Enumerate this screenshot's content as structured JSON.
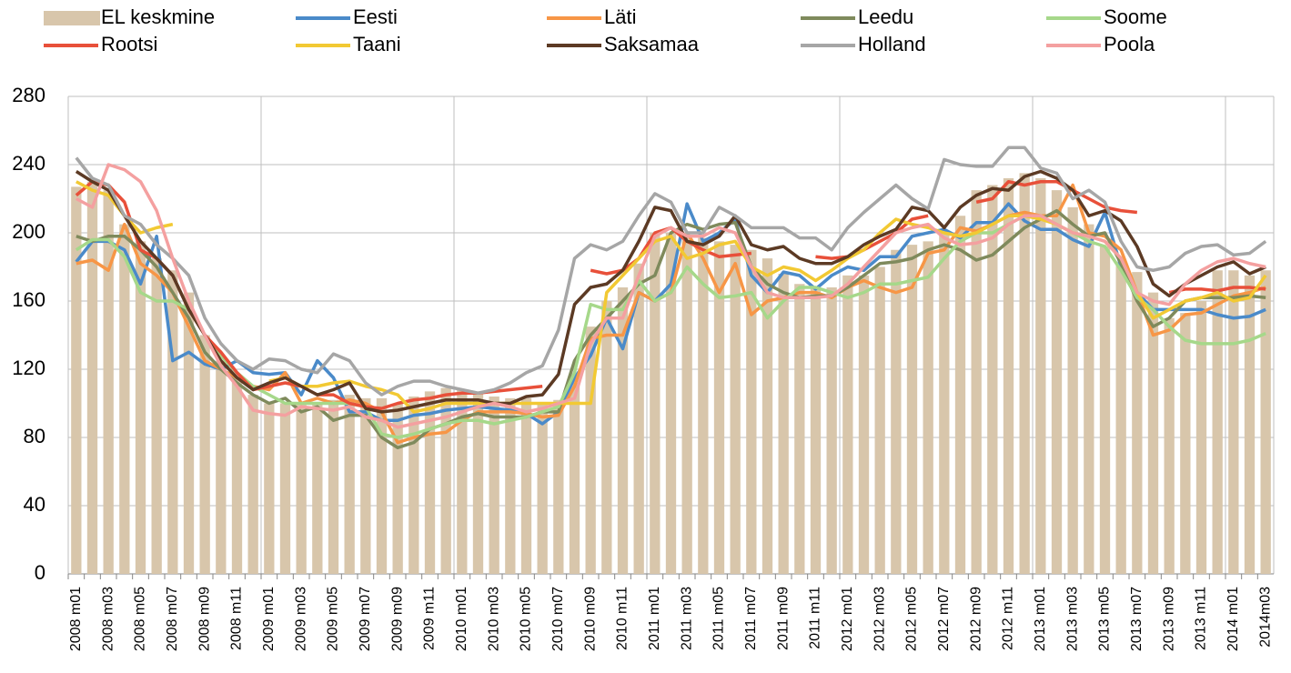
{
  "chart_data": {
    "type": "bar-line",
    "categories": [
      "2008 m01",
      null,
      "2008 m03",
      null,
      "2008 m05",
      null,
      "2008 m07",
      null,
      "2008 m09",
      null,
      "2008 m11",
      null,
      "2009 m01",
      null,
      "2009 m03",
      null,
      "2009 m05",
      null,
      "2009 m07",
      null,
      "2009 m09",
      null,
      "2009 m11",
      null,
      "2010 m01",
      null,
      "2010 m03",
      null,
      "2010 m05",
      null,
      "2010 m07",
      null,
      "2010 m09",
      null,
      "2010 m11",
      null,
      "2011 m01",
      null,
      "2011 m03",
      null,
      "2011 m05",
      null,
      "2011 m07",
      null,
      "2011 m09",
      null,
      "2011 m11",
      null,
      "2012 m01",
      null,
      "2012 m03",
      null,
      "2012 m05",
      null,
      "2012 m07",
      null,
      "2012 m09",
      null,
      "2012 m11",
      null,
      "2013 m01",
      null,
      "2013 m03",
      null,
      "2013 m05",
      null,
      "2013 m07",
      null,
      "2013 m09",
      null,
      "2013 m11",
      null,
      "2014 m01",
      null,
      "2014m03"
    ],
    "ylim": [
      0,
      280
    ],
    "yticks": [
      0,
      40,
      80,
      120,
      160,
      200,
      240,
      280
    ],
    "grid": true,
    "series": [
      {
        "name": "EL keskmine",
        "type": "bar",
        "color": "#d8c6ab",
        "values": [
          227,
          230,
          225,
          205,
          195,
          185,
          178,
          165,
          140,
          125,
          115,
          105,
          100,
          100,
          100,
          100,
          102,
          105,
          103,
          103,
          100,
          104,
          107,
          109,
          108,
          106,
          104,
          103,
          103,
          100,
          102,
          112,
          145,
          160,
          168,
          182,
          200,
          200,
          197,
          197,
          195,
          193,
          190,
          185,
          176,
          170,
          168,
          168,
          175,
          175,
          180,
          190,
          193,
          195,
          200,
          210,
          225,
          228,
          232,
          235,
          232,
          225,
          215,
          205,
          192,
          183,
          177,
          165,
          150,
          153,
          160,
          178,
          178,
          175,
          178
        ]
      },
      {
        "name": "Eesti",
        "type": "line",
        "color": "#4a8ac9",
        "values": [
          183,
          195,
          195,
          190,
          170,
          198,
          125,
          130,
          123,
          120,
          125,
          118,
          117,
          118,
          105,
          125,
          115,
          95,
          95,
          90,
          90,
          93,
          94,
          96,
          97,
          98,
          97,
          96,
          94,
          88,
          95,
          115,
          128,
          150,
          132,
          165,
          160,
          170,
          217,
          195,
          200,
          208,
          175,
          165,
          177,
          175,
          167,
          175,
          180,
          178,
          186,
          186,
          198,
          200,
          202,
          197,
          206,
          206,
          217,
          207,
          202,
          202,
          196,
          192,
          212,
          180,
          165,
          155,
          155,
          155,
          155,
          152,
          150,
          151,
          155
        ]
      },
      {
        "name": "Läti",
        "type": "line",
        "color": "#f79646",
        "values": [
          182,
          184,
          178,
          205,
          182,
          175,
          165,
          145,
          125,
          120,
          115,
          110,
          108,
          118,
          100,
          103,
          100,
          102,
          100,
          95,
          77,
          80,
          82,
          83,
          90,
          95,
          95,
          95,
          94,
          92,
          93,
          110,
          138,
          140,
          140,
          165,
          160,
          165,
          200,
          185,
          165,
          182,
          152,
          160,
          162,
          165,
          165,
          162,
          168,
          172,
          168,
          165,
          168,
          188,
          190,
          203,
          201,
          205,
          210,
          212,
          210,
          210,
          228,
          200,
          198,
          190,
          165,
          140,
          143,
          152,
          153,
          158,
          163,
          165,
          168
        ]
      },
      {
        "name": "Leedu",
        "type": "line",
        "color": "#7f8a5c",
        "values": [
          198,
          195,
          198,
          198,
          190,
          180,
          165,
          150,
          130,
          120,
          112,
          105,
          100,
          103,
          95,
          98,
          90,
          93,
          93,
          80,
          74,
          77,
          85,
          88,
          92,
          94,
          92,
          92,
          92,
          95,
          95,
          125,
          140,
          150,
          160,
          170,
          175,
          200,
          205,
          202,
          205,
          206,
          180,
          170,
          165,
          162,
          163,
          163,
          168,
          175,
          182,
          183,
          185,
          190,
          193,
          190,
          184,
          187,
          195,
          203,
          208,
          213,
          205,
          198,
          200,
          182,
          160,
          145,
          150,
          160,
          162,
          162,
          162,
          163,
          162
        ]
      },
      {
        "name": "Soome",
        "type": "line",
        "color": "#a6d88a",
        "values": [
          190,
          196,
          196,
          186,
          165,
          160,
          160,
          155,
          140,
          128,
          118,
          110,
          105,
          100,
          100,
          100,
          100,
          100,
          98,
          82,
          80,
          82,
          85,
          88,
          90,
          90,
          88,
          90,
          92,
          95,
          98,
          118,
          158,
          155,
          155,
          172,
          160,
          165,
          180,
          170,
          162,
          163,
          165,
          150,
          160,
          168,
          168,
          165,
          162,
          165,
          170,
          170,
          172,
          174,
          185,
          195,
          200,
          200,
          205,
          210,
          210,
          205,
          200,
          195,
          192,
          178,
          162,
          155,
          145,
          137,
          135,
          135,
          135,
          137,
          141
        ]
      },
      {
        "name": "Rootsi",
        "type": "line",
        "color": "#e8503a",
        "values": [
          222,
          230,
          228,
          218,
          190,
          185,
          175,
          155,
          140,
          130,
          118,
          108,
          110,
          112,
          110,
          105,
          105,
          100,
          98,
          97,
          100,
          102,
          103,
          105,
          106,
          106,
          107,
          108,
          109,
          110,
          null,
          null,
          178,
          176,
          178,
          185,
          200,
          203,
          195,
          190,
          186,
          187,
          188,
          null,
          null,
          null,
          186,
          185,
          186,
          190,
          195,
          200,
          208,
          210,
          null,
          null,
          218,
          220,
          230,
          228,
          230,
          230,
          225,
          220,
          215,
          213,
          212,
          null,
          165,
          167,
          167,
          166,
          168,
          168,
          167
        ]
      },
      {
        "name": "Taani",
        "type": "line",
        "color": "#f2c933",
        "values": [
          230,
          225,
          222,
          210,
          200,
          203,
          205,
          null,
          null,
          null,
          null,
          null,
          113,
          115,
          110,
          110,
          112,
          113,
          110,
          108,
          105,
          95,
          97,
          100,
          100,
          100,
          100,
          100,
          100,
          100,
          100,
          100,
          100,
          165,
          175,
          185,
          195,
          198,
          185,
          188,
          193,
          195,
          180,
          175,
          180,
          178,
          172,
          178,
          185,
          190,
          200,
          208,
          205,
          203,
          200,
          198,
          200,
          205,
          210,
          210,
          208,
          205,
          200,
          198,
          195,
          185,
          165,
          150,
          155,
          160,
          162,
          165,
          160,
          162,
          175
        ]
      },
      {
        "name": "Saksamaa",
        "type": "line",
        "color": "#5c3a24",
        "values": [
          236,
          230,
          225,
          210,
          195,
          185,
          175,
          155,
          140,
          125,
          115,
          108,
          112,
          115,
          110,
          105,
          108,
          112,
          97,
          95,
          96,
          98,
          100,
          102,
          102,
          102,
          100,
          100,
          104,
          105,
          117,
          158,
          168,
          170,
          178,
          195,
          215,
          213,
          195,
          193,
          198,
          210,
          193,
          190,
          192,
          185,
          182,
          182,
          186,
          193,
          198,
          202,
          215,
          213,
          203,
          215,
          222,
          226,
          225,
          233,
          236,
          232,
          225,
          210,
          213,
          207,
          192,
          170,
          163,
          170,
          175,
          180,
          183,
          176,
          180
        ]
      },
      {
        "name": "Holland",
        "type": "line",
        "color": "#a6a6a6",
        "values": [
          244,
          232,
          228,
          210,
          205,
          193,
          185,
          175,
          150,
          135,
          125,
          120,
          126,
          125,
          120,
          118,
          129,
          125,
          112,
          105,
          110,
          113,
          113,
          110,
          108,
          106,
          108,
          112,
          118,
          122,
          143,
          185,
          193,
          190,
          195,
          210,
          223,
          218,
          200,
          200,
          215,
          210,
          203,
          203,
          203,
          197,
          197,
          190,
          203,
          212,
          220,
          228,
          220,
          214,
          243,
          240,
          239,
          239,
          250,
          250,
          238,
          235,
          220,
          225,
          218,
          195,
          180,
          178,
          180,
          188,
          192,
          193,
          187,
          188,
          195
        ]
      },
      {
        "name": "Poola",
        "type": "line",
        "color": "#f4a0a0",
        "values": [
          220,
          215,
          240,
          237,
          230,
          213,
          185,
          160,
          140,
          122,
          110,
          96,
          94,
          93,
          98,
          97,
          96,
          98,
          92,
          90,
          86,
          88,
          90,
          92,
          95,
          98,
          100,
          98,
          95,
          97,
          100,
          103,
          135,
          150,
          150,
          175,
          198,
          203,
          198,
          198,
          203,
          200,
          180,
          165,
          162,
          162,
          162,
          163,
          170,
          180,
          190,
          200,
          203,
          205,
          197,
          193,
          194,
          197,
          205,
          210,
          210,
          205,
          200,
          198,
          195,
          185,
          165,
          160,
          158,
          170,
          178,
          183,
          185,
          182,
          180
        ]
      }
    ]
  }
}
